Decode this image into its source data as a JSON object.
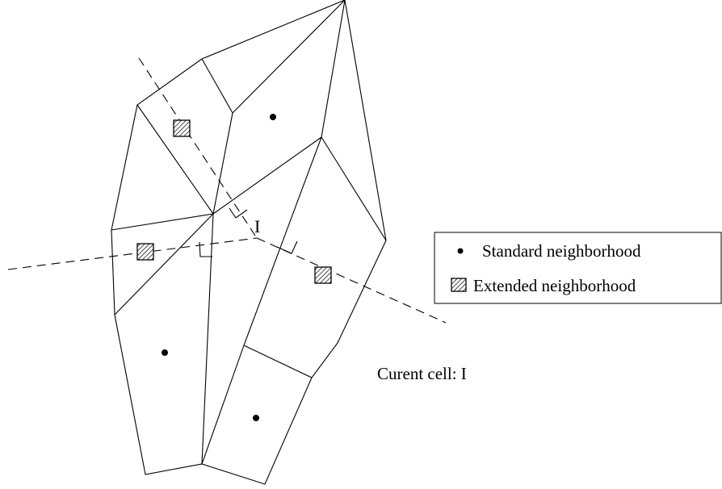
{
  "diagram": {
    "cell_label": "I",
    "caption": "Curent cell: I"
  },
  "legend": {
    "standard_label": "Standard neighborhood",
    "extended_label": "Extended neighborhood"
  }
}
